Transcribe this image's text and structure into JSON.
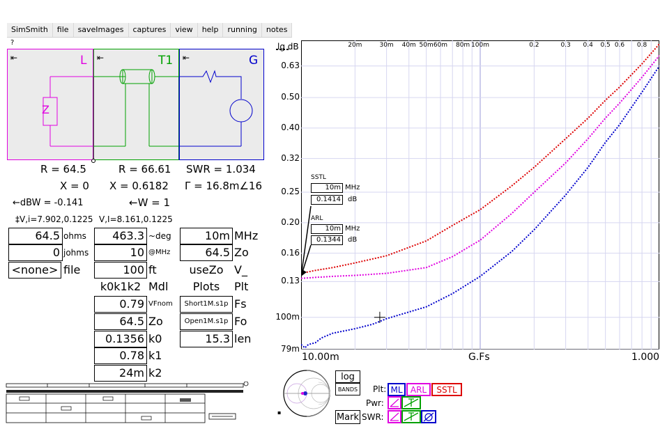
{
  "menu": [
    "SimSmith",
    "file",
    "saveImages",
    "captures",
    "view",
    "help",
    "running",
    "notes"
  ],
  "help_mark": "?",
  "circuit": {
    "L_label": "L",
    "T1_label": "T1",
    "G_label": "G",
    "arrow": "⇤",
    "z_label": "Z",
    "colors": {
      "L": "#e000e0",
      "T1": "#00a000",
      "G": "#0000cc"
    }
  },
  "readouts": {
    "r_load": "R = 64.5",
    "x_load": "X = 0",
    "r_t1": "R = 66.61",
    "x_t1": "X = 0.6182",
    "swr": "SWR = 1.034",
    "gamma": "Γ = 16.8m∠16",
    "dbw": "←dBW = -0.141",
    "w": "←W = 1",
    "vi_load": "‡V,i=7.902,0.1225",
    "vi_t1": "V,I=8.161,0.1225"
  },
  "load_fields": {
    "ohms_value": "64.5",
    "ohms_label": "ohms",
    "johms_value": "0",
    "johms_label": "johms",
    "file_value": "<none>",
    "file_label": "file"
  },
  "t1_fields": [
    {
      "value": "463.3",
      "label": "~deg"
    },
    {
      "value": "10",
      "label": "@MHz"
    },
    {
      "value": "100",
      "label": "ft"
    },
    {
      "value": "k0k1k2",
      "label": "Mdl"
    },
    {
      "value": "0.79",
      "label": "VFnom"
    },
    {
      "value": "64.5",
      "label": "Zo"
    },
    {
      "value": "0.1356",
      "label": "k0"
    },
    {
      "value": "0.78",
      "label": "k1"
    },
    {
      "value": "24m",
      "label": "k2"
    }
  ],
  "g_fields": [
    {
      "value": "10m",
      "label": "MHz"
    },
    {
      "value": "64.5",
      "label": "Zo"
    },
    {
      "value": "useZo",
      "label": "V_"
    },
    {
      "value": "Plots",
      "label": "Plt"
    },
    {
      "value": "Short1M.s1p",
      "label": "Fs"
    },
    {
      "value": "Open1M.s1p",
      "label": "Fo"
    },
    {
      "value": "15.3",
      "label": "len"
    }
  ],
  "chart_data": {
    "type": "line",
    "ylabel": "lg dB",
    "xlabel": "G.Fs",
    "x_scale": "log",
    "y_scale": "log",
    "xlim": [
      0.01,
      1.0
    ],
    "ylim": [
      0.079,
      0.76
    ],
    "x_top_ticks": [
      {
        "v": 0.02,
        "t": "20m"
      },
      {
        "v": 0.03,
        "t": "30m"
      },
      {
        "v": 0.04,
        "t": "40m"
      },
      {
        "v": 0.05,
        "t": "50m"
      },
      {
        "v": 0.06,
        "t": "60m"
      },
      {
        "v": 0.08,
        "t": "80m"
      },
      {
        "v": 0.1,
        "t": "100m"
      },
      {
        "v": 0.2,
        "t": "0.2"
      },
      {
        "v": 0.3,
        "t": "0.3"
      },
      {
        "v": 0.4,
        "t": "0.4"
      },
      {
        "v": 0.5,
        "t": "0.5"
      },
      {
        "v": 0.6,
        "t": "0.6"
      },
      {
        "v": 0.8,
        "t": "0.8"
      }
    ],
    "x_bottom_labels": {
      "left": "10.00m",
      "right": "1.000"
    },
    "y_ticks": [
      {
        "v": 0.63,
        "t": "0.63"
      },
      {
        "v": 0.5,
        "t": "0.50"
      },
      {
        "v": 0.4,
        "t": "0.40"
      },
      {
        "v": 0.32,
        "t": "0.32"
      },
      {
        "v": 0.25,
        "t": "0.25"
      },
      {
        "v": 0.2,
        "t": "0.20"
      },
      {
        "v": 0.16,
        "t": "0.16"
      },
      {
        "v": 0.13,
        "t": "0.13"
      },
      {
        "v": 0.1,
        "t": "100m"
      },
      {
        "v": 0.079,
        "t": "79m"
      }
    ],
    "series": [
      {
        "name": "SSTL",
        "color": "#dd0000",
        "x": [
          0.01,
          0.012,
          0.015,
          0.02,
          0.03,
          0.05,
          0.07,
          0.1,
          0.15,
          0.2,
          0.3,
          0.4,
          0.5,
          0.6,
          0.8,
          1.0
        ],
        "y": [
          0.138,
          0.141,
          0.144,
          0.149,
          0.157,
          0.175,
          0.196,
          0.22,
          0.262,
          0.3,
          0.37,
          0.43,
          0.49,
          0.54,
          0.64,
          0.74
        ]
      },
      {
        "name": "ARL",
        "color": "#e000e0",
        "x": [
          0.01,
          0.012,
          0.015,
          0.02,
          0.03,
          0.05,
          0.07,
          0.1,
          0.15,
          0.2,
          0.3,
          0.4,
          0.5,
          0.6,
          0.8,
          1.0
        ],
        "y": [
          0.133,
          0.134,
          0.135,
          0.136,
          0.138,
          0.144,
          0.156,
          0.176,
          0.214,
          0.25,
          0.31,
          0.37,
          0.43,
          0.48,
          0.58,
          0.68
        ]
      },
      {
        "name": "ML",
        "color": "#0000cc",
        "x": [
          0.01,
          0.0105,
          0.011,
          0.012,
          0.013,
          0.015,
          0.02,
          0.025,
          0.03,
          0.04,
          0.05,
          0.07,
          0.1,
          0.15,
          0.2,
          0.3,
          0.4,
          0.5,
          0.6,
          0.8,
          1.0
        ],
        "y": [
          0.082,
          0.08,
          0.082,
          0.083,
          0.086,
          0.089,
          0.092,
          0.095,
          0.099,
          0.104,
          0.108,
          0.119,
          0.135,
          0.162,
          0.19,
          0.245,
          0.3,
          0.36,
          0.41,
          0.52,
          0.63
        ]
      }
    ],
    "markers": [
      {
        "name": "SSTL",
        "freq": "10m",
        "freq_unit": "MHz",
        "value": "0.1414",
        "value_unit": "dB"
      },
      {
        "name": "ARL",
        "freq": "10m",
        "freq_unit": "MHz",
        "value": "0.1344",
        "value_unit": "dB"
      }
    ],
    "cursor": {
      "x": 0.0275,
      "y": 0.1
    }
  },
  "controls": {
    "log": "log",
    "bands": "BANDS",
    "mark": "Mark",
    "plt_label": "Plt:",
    "pwr_label": "Pwr:",
    "swr_label": "SWR:",
    "plt_buttons": [
      {
        "label": "ML",
        "color": "#0000cc"
      },
      {
        "label": "ARL",
        "color": "#e000e0"
      },
      {
        "label": "SSTL",
        "color": "#dd0000"
      }
    ]
  }
}
